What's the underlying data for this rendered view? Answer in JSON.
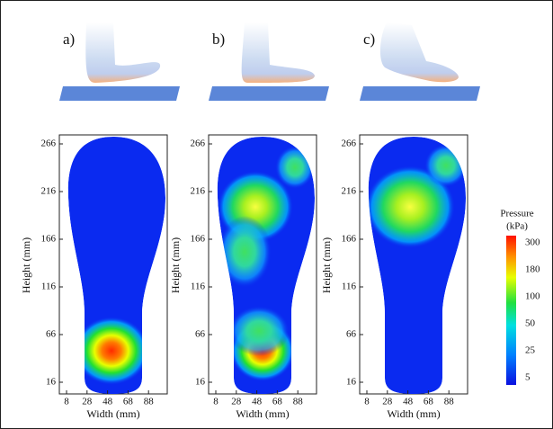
{
  "panels": [
    {
      "label": "a)",
      "x_label": "Width (mm)",
      "y_label": "Height (mm)",
      "xticks": [
        8,
        28,
        48,
        68,
        88
      ],
      "yticks": [
        16,
        66,
        116,
        166,
        216,
        266
      ]
    },
    {
      "label": "b)",
      "x_label": "Width (mm)",
      "y_label": "Height (mm)",
      "xticks": [
        8,
        28,
        48,
        68,
        88
      ],
      "yticks": [
        16,
        66,
        116,
        166,
        216,
        266
      ]
    },
    {
      "label": "c)",
      "x_label": "Width (mm)",
      "y_label": "Height (mm)",
      "xticks": [
        8,
        28,
        48,
        68,
        88
      ],
      "yticks": [
        16,
        66,
        116,
        166,
        216,
        266
      ]
    }
  ],
  "colorbar": {
    "title": "Pressure",
    "unit": "(kPa)",
    "ticks": [
      "300",
      "180",
      "100",
      "50",
      "25",
      "5"
    ]
  }
}
